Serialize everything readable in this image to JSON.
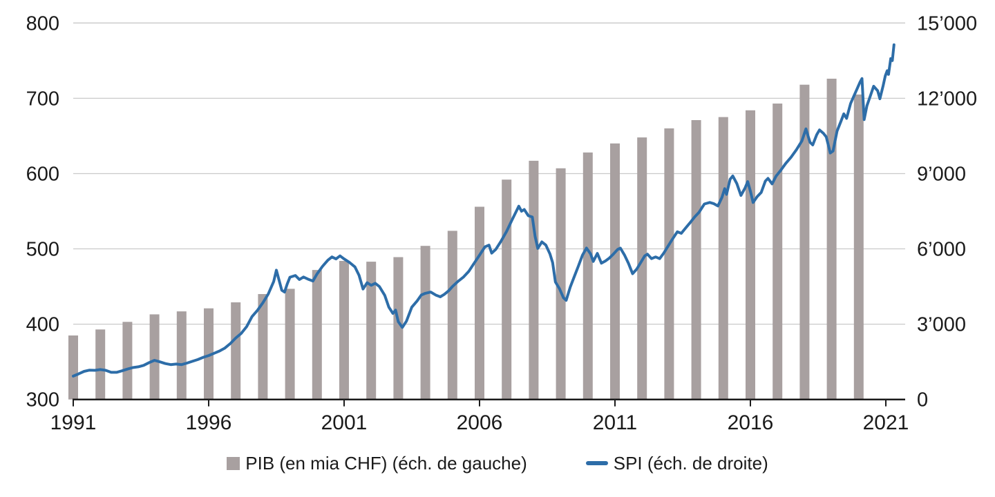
{
  "legend": {
    "pib_label": "PIB (en mia CHF) (éch. de gauche)",
    "spi_label": "SPI (éch. de droite)"
  },
  "colors": {
    "bar": "#a8a0a0",
    "line": "#2d6da8",
    "gridline": "#c9c9c9",
    "axis": "#1a1a1a",
    "text": "#1a1a1a"
  },
  "chart_data": {
    "type": "combo-bar-line",
    "title": "",
    "grid": "horizontal-on",
    "legend_position": "bottom",
    "left_axis": {
      "name": "PIB (en mia CHF)",
      "range": [
        300,
        800
      ],
      "ticks": [
        300,
        400,
        500,
        600,
        700,
        800
      ]
    },
    "right_axis": {
      "name": "SPI",
      "range": [
        0,
        15000
      ],
      "tick_values": [
        0,
        3000,
        6000,
        9000,
        12000,
        15000
      ],
      "tick_labels": [
        "0",
        "3’000",
        "6’000",
        "9’000",
        "12’000",
        "15’000"
      ]
    },
    "x_axis": {
      "range": [
        1991,
        2021.7
      ],
      "tick_years": [
        1991,
        1996,
        2001,
        2006,
        2011,
        2016,
        2021
      ]
    },
    "bars": {
      "name": "PIB (en mia CHF) (éch. de gauche)",
      "type": "bar",
      "axis": "left",
      "years": [
        1991,
        1992,
        1993,
        1994,
        1995,
        1996,
        1997,
        1998,
        1999,
        2000,
        2001,
        2002,
        2003,
        2004,
        2005,
        2006,
        2007,
        2008,
        2009,
        2010,
        2011,
        2012,
        2013,
        2014,
        2015,
        2016,
        2017,
        2018,
        2019,
        2020
      ],
      "values": [
        385,
        393,
        403,
        413,
        417,
        421,
        429,
        440,
        447,
        472,
        484,
        483,
        489,
        504,
        524,
        556,
        592,
        617,
        607,
        628,
        640,
        648,
        660,
        671,
        675,
        684,
        693,
        718,
        726,
        705
      ]
    },
    "line": {
      "name": "SPI (éch. de droite)",
      "type": "line",
      "axis": "right",
      "points": [
        [
          1991.0,
          930
        ],
        [
          1991.2,
          1020
        ],
        [
          1991.4,
          1120
        ],
        [
          1991.6,
          1170
        ],
        [
          1991.8,
          1160
        ],
        [
          1992.0,
          1190
        ],
        [
          1992.2,
          1160
        ],
        [
          1992.4,
          1080
        ],
        [
          1992.6,
          1080
        ],
        [
          1992.8,
          1140
        ],
        [
          1993.0,
          1210
        ],
        [
          1993.2,
          1270
        ],
        [
          1993.4,
          1300
        ],
        [
          1993.6,
          1360
        ],
        [
          1993.8,
          1470
        ],
        [
          1994.0,
          1560
        ],
        [
          1994.2,
          1500
        ],
        [
          1994.4,
          1430
        ],
        [
          1994.6,
          1390
        ],
        [
          1994.8,
          1410
        ],
        [
          1995.0,
          1390
        ],
        [
          1995.2,
          1450
        ],
        [
          1995.4,
          1520
        ],
        [
          1995.6,
          1590
        ],
        [
          1995.8,
          1680
        ],
        [
          1996.0,
          1750
        ],
        [
          1996.2,
          1840
        ],
        [
          1996.4,
          1930
        ],
        [
          1996.6,
          2050
        ],
        [
          1996.8,
          2230
        ],
        [
          1997.0,
          2450
        ],
        [
          1997.2,
          2630
        ],
        [
          1997.4,
          2900
        ],
        [
          1997.6,
          3300
        ],
        [
          1997.8,
          3550
        ],
        [
          1998.0,
          3850
        ],
        [
          1998.2,
          4200
        ],
        [
          1998.4,
          4700
        ],
        [
          1998.5,
          5150
        ],
        [
          1998.6,
          4750
        ],
        [
          1998.7,
          4350
        ],
        [
          1998.8,
          4280
        ],
        [
          1998.9,
          4600
        ],
        [
          1999.0,
          4870
        ],
        [
          1999.2,
          4940
        ],
        [
          1999.35,
          4780
        ],
        [
          1999.5,
          4880
        ],
        [
          1999.7,
          4780
        ],
        [
          1999.85,
          4720
        ],
        [
          2000.0,
          5000
        ],
        [
          2000.2,
          5300
        ],
        [
          2000.4,
          5550
        ],
        [
          2000.55,
          5680
        ],
        [
          2000.7,
          5600
        ],
        [
          2000.85,
          5720
        ],
        [
          2001.0,
          5600
        ],
        [
          2001.2,
          5460
        ],
        [
          2001.4,
          5280
        ],
        [
          2001.55,
          4950
        ],
        [
          2001.7,
          4400
        ],
        [
          2001.85,
          4650
        ],
        [
          2002.0,
          4550
        ],
        [
          2002.15,
          4630
        ],
        [
          2002.3,
          4500
        ],
        [
          2002.5,
          4150
        ],
        [
          2002.65,
          3680
        ],
        [
          2002.8,
          3430
        ],
        [
          2002.9,
          3560
        ],
        [
          2003.0,
          3100
        ],
        [
          2003.15,
          2870
        ],
        [
          2003.3,
          3120
        ],
        [
          2003.5,
          3680
        ],
        [
          2003.7,
          3930
        ],
        [
          2003.85,
          4160
        ],
        [
          2004.0,
          4230
        ],
        [
          2004.2,
          4280
        ],
        [
          2004.4,
          4150
        ],
        [
          2004.55,
          4090
        ],
        [
          2004.7,
          4190
        ],
        [
          2004.85,
          4320
        ],
        [
          2005.0,
          4500
        ],
        [
          2005.2,
          4700
        ],
        [
          2005.4,
          4870
        ],
        [
          2005.6,
          5100
        ],
        [
          2005.8,
          5430
        ],
        [
          2006.0,
          5750
        ],
        [
          2006.2,
          6080
        ],
        [
          2006.35,
          6150
        ],
        [
          2006.45,
          5830
        ],
        [
          2006.6,
          5980
        ],
        [
          2006.8,
          6320
        ],
        [
          2007.0,
          6700
        ],
        [
          2007.2,
          7150
        ],
        [
          2007.45,
          7700
        ],
        [
          2007.55,
          7500
        ],
        [
          2007.65,
          7570
        ],
        [
          2007.8,
          7320
        ],
        [
          2007.95,
          7270
        ],
        [
          2008.05,
          6500
        ],
        [
          2008.15,
          6020
        ],
        [
          2008.3,
          6280
        ],
        [
          2008.45,
          6150
        ],
        [
          2008.6,
          5800
        ],
        [
          2008.7,
          5450
        ],
        [
          2008.8,
          4680
        ],
        [
          2008.95,
          4420
        ],
        [
          2009.1,
          4050
        ],
        [
          2009.2,
          3950
        ],
        [
          2009.35,
          4480
        ],
        [
          2009.5,
          4900
        ],
        [
          2009.65,
          5320
        ],
        [
          2009.8,
          5750
        ],
        [
          2009.95,
          6030
        ],
        [
          2010.1,
          5800
        ],
        [
          2010.2,
          5500
        ],
        [
          2010.35,
          5820
        ],
        [
          2010.5,
          5430
        ],
        [
          2010.65,
          5520
        ],
        [
          2010.8,
          5640
        ],
        [
          2010.95,
          5800
        ],
        [
          2011.1,
          5980
        ],
        [
          2011.2,
          6030
        ],
        [
          2011.35,
          5760
        ],
        [
          2011.5,
          5420
        ],
        [
          2011.65,
          5010
        ],
        [
          2011.8,
          5190
        ],
        [
          2011.95,
          5450
        ],
        [
          2012.1,
          5720
        ],
        [
          2012.2,
          5790
        ],
        [
          2012.35,
          5610
        ],
        [
          2012.5,
          5680
        ],
        [
          2012.65,
          5610
        ],
        [
          2012.8,
          5830
        ],
        [
          2012.95,
          6090
        ],
        [
          2013.1,
          6350
        ],
        [
          2013.3,
          6680
        ],
        [
          2013.45,
          6620
        ],
        [
          2013.6,
          6820
        ],
        [
          2013.8,
          7080
        ],
        [
          2013.95,
          7280
        ],
        [
          2014.1,
          7450
        ],
        [
          2014.3,
          7790
        ],
        [
          2014.5,
          7850
        ],
        [
          2014.65,
          7800
        ],
        [
          2014.8,
          7710
        ],
        [
          2014.95,
          8050
        ],
        [
          2015.05,
          8400
        ],
        [
          2015.12,
          8170
        ],
        [
          2015.25,
          8770
        ],
        [
          2015.35,
          8905
        ],
        [
          2015.5,
          8600
        ],
        [
          2015.65,
          8130
        ],
        [
          2015.8,
          8420
        ],
        [
          2015.9,
          8680
        ],
        [
          2016.0,
          8300
        ],
        [
          2016.1,
          7850
        ],
        [
          2016.25,
          8080
        ],
        [
          2016.4,
          8250
        ],
        [
          2016.55,
          8700
        ],
        [
          2016.65,
          8810
        ],
        [
          2016.8,
          8590
        ],
        [
          2016.95,
          8900
        ],
        [
          2017.1,
          9100
        ],
        [
          2017.3,
          9400
        ],
        [
          2017.5,
          9650
        ],
        [
          2017.7,
          9950
        ],
        [
          2017.9,
          10300
        ],
        [
          2018.05,
          10780
        ],
        [
          2018.2,
          10250
        ],
        [
          2018.3,
          10140
        ],
        [
          2018.45,
          10550
        ],
        [
          2018.55,
          10740
        ],
        [
          2018.7,
          10600
        ],
        [
          2018.8,
          10460
        ],
        [
          2018.95,
          9820
        ],
        [
          2019.05,
          9900
        ],
        [
          2019.2,
          10690
        ],
        [
          2019.35,
          11100
        ],
        [
          2019.45,
          11380
        ],
        [
          2019.55,
          11200
        ],
        [
          2019.7,
          11790
        ],
        [
          2019.85,
          12160
        ],
        [
          2019.95,
          12400
        ],
        [
          2020.05,
          12650
        ],
        [
          2020.12,
          12785
        ],
        [
          2020.2,
          11150
        ],
        [
          2020.3,
          11700
        ],
        [
          2020.45,
          12160
        ],
        [
          2020.55,
          12480
        ],
        [
          2020.7,
          12300
        ],
        [
          2020.78,
          11980
        ],
        [
          2020.9,
          12500
        ],
        [
          2020.98,
          12890
        ],
        [
          2021.05,
          13100
        ],
        [
          2021.1,
          12950
        ],
        [
          2021.18,
          13580
        ],
        [
          2021.24,
          13500
        ],
        [
          2021.3,
          14130
        ]
      ]
    }
  }
}
